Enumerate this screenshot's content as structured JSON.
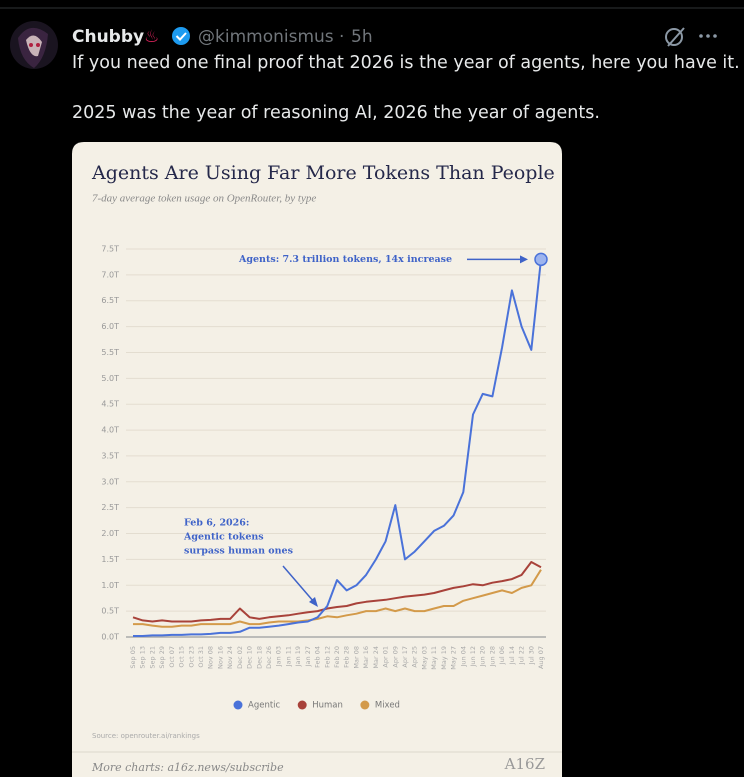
{
  "post": {
    "name": "Chubby",
    "name_emoji": "♨",
    "handle": "@kimmonismus",
    "separator": "·",
    "time": "5h",
    "text": [
      "If you need one final proof that 2026 is the year of agents, here you have it.",
      "2025 was the year of reasoning AI, 2026 the year of agents."
    ]
  },
  "chart_data": {
    "type": "line",
    "title": "Agents Are Using Far More Tokens Than People",
    "subtitle": "7-day average token usage on OpenRouter, by type",
    "categories": [
      "Sep 05",
      "Sep 13",
      "Sep 21",
      "Sep 29",
      "Oct 07",
      "Oct 15",
      "Oct 23",
      "Oct 31",
      "Nov 08",
      "Nov 16",
      "Nov 24",
      "Dec 02",
      "Dec 10",
      "Dec 18",
      "Dec 26",
      "Jan 03",
      "Jan 11",
      "Jan 19",
      "Jan 27",
      "Feb 04",
      "Feb 12",
      "Feb 20",
      "Feb 28",
      "Mar 08",
      "Mar 16",
      "Mar 24",
      "Apr 01",
      "Apr 09",
      "Apr 17",
      "Apr 25",
      "May 03",
      "May 11",
      "May 19",
      "May 27",
      "Jun 04",
      "Jun 12",
      "Jun 20",
      "Jun 28",
      "Jul 06",
      "Jul 14",
      "Jul 22",
      "Jul 30",
      "Aug 07"
    ],
    "series": [
      {
        "name": "Agentic",
        "color": "#4a72d9",
        "values": [
          0.02,
          0.02,
          0.03,
          0.03,
          0.04,
          0.04,
          0.05,
          0.05,
          0.06,
          0.08,
          0.08,
          0.1,
          0.18,
          0.18,
          0.2,
          0.22,
          0.25,
          0.28,
          0.3,
          0.38,
          0.6,
          1.1,
          0.9,
          1.0,
          1.2,
          1.5,
          1.85,
          2.55,
          1.5,
          1.65,
          1.85,
          2.05,
          2.15,
          2.35,
          2.8,
          4.3,
          4.7,
          4.65,
          5.6,
          6.7,
          6.0,
          5.55,
          7.3
        ]
      },
      {
        "name": "Human",
        "color": "#a8423a",
        "values": [
          0.38,
          0.32,
          0.3,
          0.32,
          0.3,
          0.3,
          0.3,
          0.32,
          0.33,
          0.35,
          0.35,
          0.55,
          0.38,
          0.35,
          0.38,
          0.4,
          0.42,
          0.45,
          0.48,
          0.5,
          0.55,
          0.58,
          0.6,
          0.65,
          0.68,
          0.7,
          0.72,
          0.75,
          0.78,
          0.8,
          0.82,
          0.85,
          0.9,
          0.95,
          0.98,
          1.02,
          1.0,
          1.05,
          1.08,
          1.12,
          1.2,
          1.45,
          1.35
        ]
      },
      {
        "name": "Mixed",
        "color": "#d39a4a",
        "values": [
          0.25,
          0.25,
          0.22,
          0.2,
          0.2,
          0.22,
          0.22,
          0.25,
          0.25,
          0.25,
          0.25,
          0.3,
          0.25,
          0.25,
          0.28,
          0.3,
          0.3,
          0.3,
          0.32,
          0.35,
          0.4,
          0.38,
          0.42,
          0.45,
          0.5,
          0.5,
          0.55,
          0.5,
          0.55,
          0.5,
          0.5,
          0.55,
          0.6,
          0.6,
          0.7,
          0.75,
          0.8,
          0.85,
          0.9,
          0.85,
          0.95,
          1.0,
          1.3
        ]
      }
    ],
    "ylim": [
      0,
      7.5
    ],
    "yticks": [
      {
        "value": 0,
        "label": "0.0T"
      },
      {
        "value": 0.5,
        "label": "0.5T"
      },
      {
        "value": 1,
        "label": "1.0T"
      },
      {
        "value": 1.5,
        "label": "1.5T"
      },
      {
        "value": 2,
        "label": "2.0T"
      },
      {
        "value": 2.5,
        "label": "2.5T"
      },
      {
        "value": 3,
        "label": "3.0T"
      },
      {
        "value": 3.5,
        "label": "3.5T"
      },
      {
        "value": 4,
        "label": "4.0T"
      },
      {
        "value": 4.5,
        "label": "4.5T"
      },
      {
        "value": 5,
        "label": "5.0T"
      },
      {
        "value": 5.5,
        "label": "5.5T"
      },
      {
        "value": 6,
        "label": "6.0T"
      },
      {
        "value": 6.5,
        "label": "6.5T"
      },
      {
        "value": 7,
        "label": "7.0T"
      },
      {
        "value": 7.5,
        "label": "7.5T"
      }
    ],
    "grid": true,
    "legend": "bottom",
    "annotations": [
      [
        "Agents: 7.3 trillion tokens, 14x increase"
      ],
      [
        "Feb 6, 2026:",
        "Agentic tokens",
        "surpass human ones"
      ]
    ],
    "source": "Source: openrouter.ai/rankings",
    "footer": "More charts: a16z.news/subscribe",
    "logo": "A16Z"
  }
}
